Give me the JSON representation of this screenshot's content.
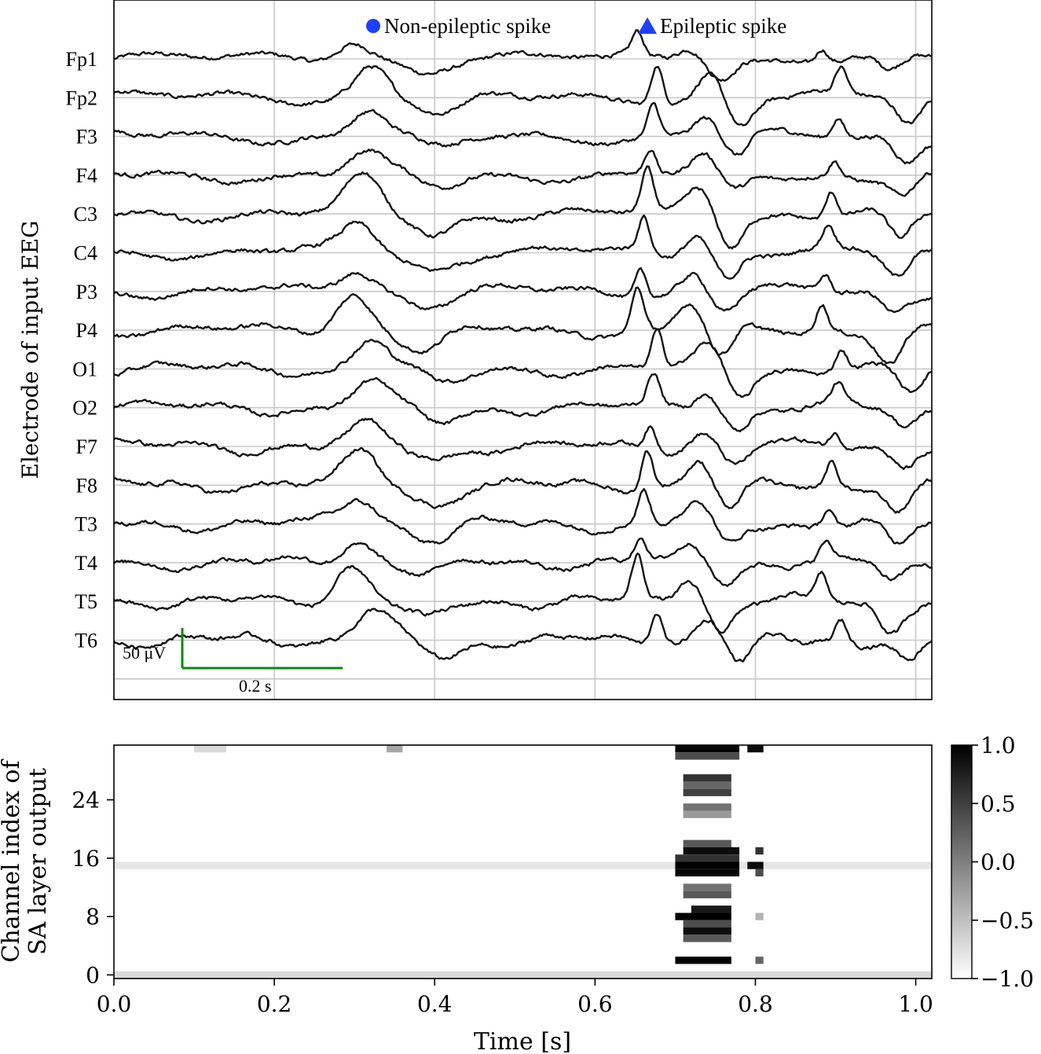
{
  "chart_data": [
    {
      "type": "line",
      "ylabel": "Electrode of input EEG",
      "xlim": [
        0.0,
        1.02
      ],
      "x_gridlines": [
        0.0,
        0.2,
        0.4,
        0.6,
        0.8,
        1.0
      ],
      "grid": true,
      "legend": {
        "placement": "top-center",
        "entries": [
          {
            "label": "Non-epileptic spike",
            "marker": "circle",
            "color": "#1f3fff"
          },
          {
            "label": "Epileptic spike",
            "marker": "triangle",
            "color": "#1f3fff"
          }
        ]
      },
      "channels": [
        "Fp1",
        "Fp2",
        "F3",
        "F4",
        "C3",
        "C4",
        "P3",
        "P4",
        "O1",
        "O2",
        "F7",
        "F8",
        "T3",
        "T4",
        "T5",
        "T6"
      ],
      "series_color": "#111111",
      "shared_events": [
        {
          "t": 0.31,
          "amp": 1.1,
          "width": 0.03
        },
        {
          "t": 0.4,
          "amp": -0.6,
          "width": 0.035
        },
        {
          "t": 0.665,
          "amp": 1.3,
          "width": 0.01
        },
        {
          "t": 0.73,
          "amp": 0.8,
          "width": 0.02
        },
        {
          "t": 0.77,
          "amp": -0.9,
          "width": 0.02
        },
        {
          "t": 0.895,
          "amp": 0.8,
          "width": 0.01
        },
        {
          "t": 0.98,
          "amp": -0.9,
          "width": 0.02
        }
      ],
      "scale_bar": {
        "amplitude_label": "50 μV",
        "time_label": "0.2 s",
        "time_length": 0.2,
        "color": "#0a8a0a"
      }
    },
    {
      "type": "heatmap",
      "xlabel": "Time [s]",
      "ylabel": "Channel index of SA layer output",
      "xlim": [
        0.0,
        1.02
      ],
      "ylim": [
        0,
        32
      ],
      "x_ticks": [
        0.0,
        0.2,
        0.4,
        0.6,
        0.8,
        1.0
      ],
      "x_tick_labels": [
        "0.0",
        "0.2",
        "0.4",
        "0.6",
        "0.8",
        "1.0"
      ],
      "y_ticks": [
        0,
        8,
        16,
        24
      ],
      "colormap": "white-to-black",
      "colorbar": {
        "min": -1.0,
        "max": 1.0,
        "ticks": [
          1.0,
          0.5,
          0.0,
          -0.5,
          -1.0
        ],
        "tick_labels": [
          "1.0",
          "0.5",
          "0.0",
          "−0.5",
          "−1.0"
        ]
      },
      "background_value": -1.0,
      "bands": [
        {
          "channel": 0,
          "t0": 0.0,
          "t1": 1.02,
          "value": -0.7
        },
        {
          "channel": 15,
          "t0": 0.0,
          "t1": 1.02,
          "value": -0.8
        },
        {
          "channel": 31,
          "t0": 0.1,
          "t1": 0.14,
          "value": -0.7
        },
        {
          "channel": 31,
          "t0": 0.34,
          "t1": 0.36,
          "value": -0.3
        },
        {
          "channel": 31,
          "t0": 0.7,
          "t1": 0.78,
          "value": 0.95
        },
        {
          "channel": 30,
          "t0": 0.7,
          "t1": 0.78,
          "value": 0.4
        },
        {
          "channel": 31,
          "t0": 0.79,
          "t1": 0.81,
          "value": 0.9
        },
        {
          "channel": 27,
          "t0": 0.71,
          "t1": 0.77,
          "value": 0.6
        },
        {
          "channel": 26,
          "t0": 0.71,
          "t1": 0.77,
          "value": 0.2
        },
        {
          "channel": 25,
          "t0": 0.71,
          "t1": 0.77,
          "value": 0.5
        },
        {
          "channel": 23,
          "t0": 0.71,
          "t1": 0.77,
          "value": 0.1
        },
        {
          "channel": 22,
          "t0": 0.71,
          "t1": 0.77,
          "value": -0.2
        },
        {
          "channel": 18,
          "t0": 0.71,
          "t1": 0.77,
          "value": 0.3
        },
        {
          "channel": 17,
          "t0": 0.71,
          "t1": 0.78,
          "value": 0.9
        },
        {
          "channel": 16,
          "t0": 0.7,
          "t1": 0.78,
          "value": 0.6
        },
        {
          "channel": 15,
          "t0": 0.7,
          "t1": 0.78,
          "value": 1.0
        },
        {
          "channel": 14,
          "t0": 0.7,
          "t1": 0.78,
          "value": 0.95
        },
        {
          "channel": 12,
          "t0": 0.71,
          "t1": 0.77,
          "value": 0.1
        },
        {
          "channel": 11,
          "t0": 0.71,
          "t1": 0.77,
          "value": 0.3
        },
        {
          "channel": 9,
          "t0": 0.72,
          "t1": 0.77,
          "value": 0.8
        },
        {
          "channel": 8,
          "t0": 0.7,
          "t1": 0.77,
          "value": 1.0
        },
        {
          "channel": 7,
          "t0": 0.71,
          "t1": 0.77,
          "value": 0.4
        },
        {
          "channel": 6,
          "t0": 0.71,
          "t1": 0.77,
          "value": 0.9
        },
        {
          "channel": 5,
          "t0": 0.71,
          "t1": 0.77,
          "value": 0.3
        },
        {
          "channel": 2,
          "t0": 0.7,
          "t1": 0.77,
          "value": 1.0
        },
        {
          "channel": 17,
          "t0": 0.8,
          "t1": 0.81,
          "value": 0.6
        },
        {
          "channel": 15,
          "t0": 0.79,
          "t1": 0.81,
          "value": 0.9
        },
        {
          "channel": 14,
          "t0": 0.8,
          "t1": 0.81,
          "value": 0.4
        },
        {
          "channel": 2,
          "t0": 0.8,
          "t1": 0.81,
          "value": 0.2
        },
        {
          "channel": 8,
          "t0": 0.8,
          "t1": 0.81,
          "value": -0.4
        }
      ]
    }
  ]
}
